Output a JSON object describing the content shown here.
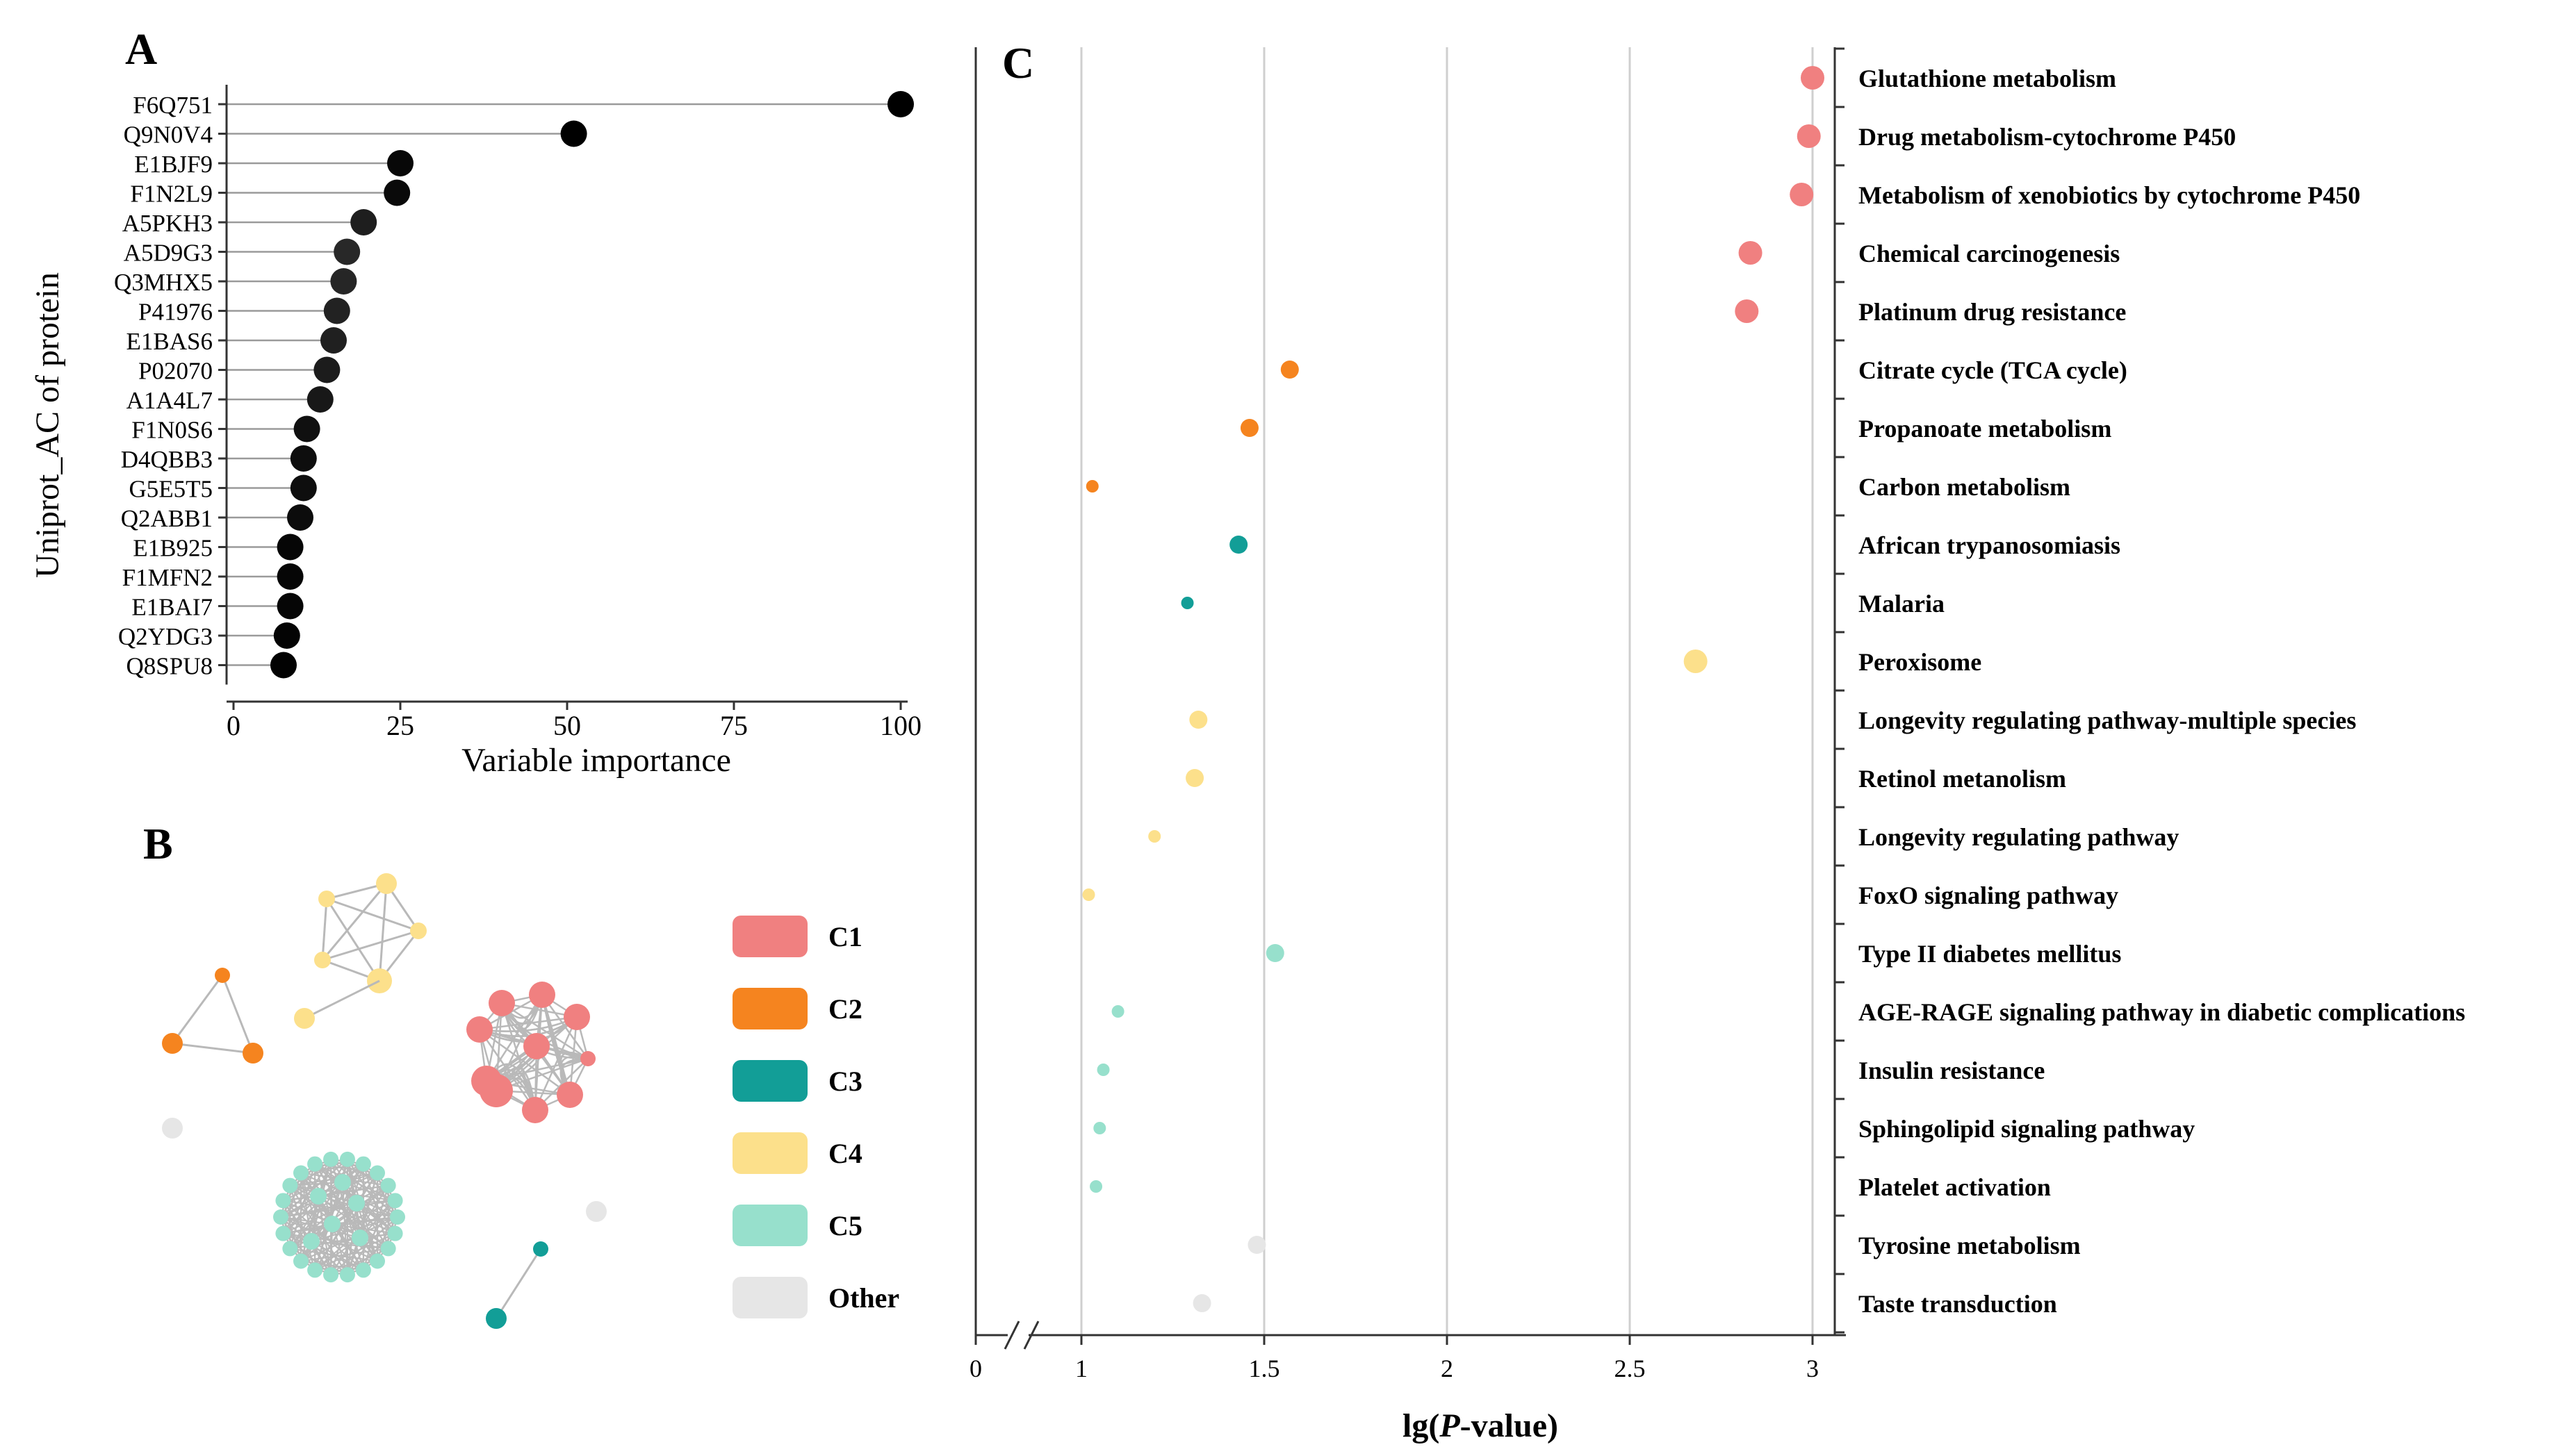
{
  "chart_data": [
    {
      "id": "A",
      "panel_label": "A",
      "type": "lollipop",
      "xlabel": "Variable importance",
      "ylabel": "Uniprot_AC of protein",
      "xlim": [
        0,
        100
      ],
      "xticks": [
        "0",
        "25",
        "50",
        "75",
        "100"
      ],
      "categories": [
        "F6Q751",
        "Q9N0V4",
        "E1BJF9",
        "F1N2L9",
        "A5PKH3",
        "A5D9G3",
        "Q3MHX5",
        "P41976",
        "E1BAS6",
        "P02070",
        "A1A4L7",
        "F1N0S6",
        "D4QBB3",
        "G5E5T5",
        "Q2ABB1",
        "E1B925",
        "F1MFN2",
        "E1BAI7",
        "Q2YDG3",
        "Q8SPU8"
      ],
      "values": [
        100,
        51,
        25,
        24.5,
        19.5,
        17,
        16.5,
        15.5,
        15,
        14,
        13,
        11,
        10.5,
        10.5,
        10,
        8.5,
        8.5,
        8.5,
        8,
        7.5
      ]
    },
    {
      "id": "B",
      "panel_label": "B",
      "type": "network",
      "legend": [
        {
          "label": "C1",
          "color": "#F08080"
        },
        {
          "label": "C2",
          "color": "#F5841F"
        },
        {
          "label": "C3",
          "color": "#129E97"
        },
        {
          "label": "C4",
          "color": "#FCE08B"
        },
        {
          "label": "C5",
          "color": "#97E0CC"
        },
        {
          "label": "Other",
          "color": "#E6E6E6"
        }
      ]
    },
    {
      "id": "C",
      "panel_label": "C",
      "type": "scatter",
      "xlabel_prefix": "lg(",
      "xlabel_italic": "P",
      "xlabel_suffix": "-value)",
      "xlim": [
        0,
        3
      ],
      "xticks": [
        {
          "value": 0,
          "label": "0"
        },
        {
          "value": 1,
          "label": "1"
        },
        {
          "value": 1.5,
          "label": "1.5"
        },
        {
          "value": 2,
          "label": "2"
        },
        {
          "value": 2.5,
          "label": "2.5"
        },
        {
          "value": 3,
          "label": "3"
        }
      ],
      "pathways": [
        {
          "name": "Glutathione metabolism",
          "value": 3.0,
          "cluster": "C1",
          "size": 3
        },
        {
          "name": "Drug metabolism-cytochrome P450",
          "value": 2.99,
          "cluster": "C1",
          "size": 3
        },
        {
          "name": "Metabolism of xenobiotics by cytochrome P450",
          "value": 2.97,
          "cluster": "C1",
          "size": 3
        },
        {
          "name": "Chemical carcinogenesis",
          "value": 2.83,
          "cluster": "C1",
          "size": 3
        },
        {
          "name": "Platinum drug resistance",
          "value": 2.82,
          "cluster": "C1",
          "size": 3
        },
        {
          "name": "Citrate cycle (TCA cycle)",
          "value": 1.57,
          "cluster": "C2",
          "size": 2
        },
        {
          "name": "Propanoate metabolism",
          "value": 1.46,
          "cluster": "C2",
          "size": 2
        },
        {
          "name": "Carbon metabolism",
          "value": 1.03,
          "cluster": "C2",
          "size": 1
        },
        {
          "name": "African trypanosomiasis",
          "value": 1.43,
          "cluster": "C3",
          "size": 2
        },
        {
          "name": "Malaria",
          "value": 1.29,
          "cluster": "C3",
          "size": 1
        },
        {
          "name": "Peroxisome",
          "value": 2.68,
          "cluster": "C4",
          "size": 3
        },
        {
          "name": "Longevity regulating pathway-multiple species",
          "value": 1.32,
          "cluster": "C4",
          "size": 2
        },
        {
          "name": "Retinol metanolism",
          "value": 1.31,
          "cluster": "C4",
          "size": 2
        },
        {
          "name": "Longevity regulating pathway",
          "value": 1.2,
          "cluster": "C4",
          "size": 1
        },
        {
          "name": "FoxO signaling pathway",
          "value": 1.02,
          "cluster": "C4",
          "size": 1
        },
        {
          "name": "Type II diabetes mellitus",
          "value": 1.53,
          "cluster": "C5",
          "size": 2
        },
        {
          "name": "AGE-RAGE signaling pathway in diabetic complications",
          "value": 1.1,
          "cluster": "C5",
          "size": 1
        },
        {
          "name": "Insulin resistance",
          "value": 1.06,
          "cluster": "C5",
          "size": 1
        },
        {
          "name": "Sphingolipid signaling pathway",
          "value": 1.05,
          "cluster": "C5",
          "size": 1
        },
        {
          "name": "Platelet activation",
          "value": 1.04,
          "cluster": "C5",
          "size": 1
        },
        {
          "name": "Tyrosine metabolism",
          "value": 1.48,
          "cluster": "Other",
          "size": 2
        },
        {
          "name": "Taste transduction",
          "value": 1.33,
          "cluster": "Other",
          "size": 2
        }
      ]
    }
  ]
}
